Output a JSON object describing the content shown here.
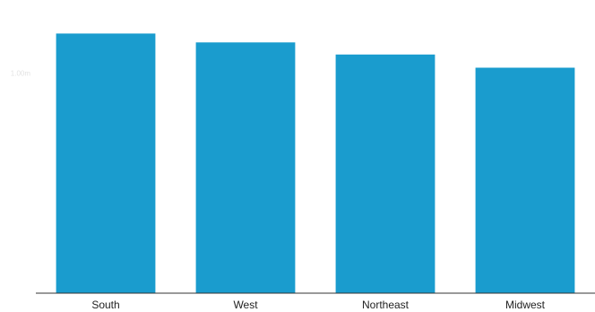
{
  "chart_data": {
    "type": "bar",
    "categories": [
      "South",
      "West",
      "Northeast",
      "Midwest"
    ],
    "values": [
      1.18,
      1.14,
      1.085,
      1.025
    ],
    "ylim": [
      0,
      1.3
    ],
    "y_ticks": [
      {
        "value": 1.0,
        "label": "1.00m"
      }
    ],
    "grid": false,
    "bar_color": "#1A9CCE",
    "axis_color": "#333333"
  }
}
